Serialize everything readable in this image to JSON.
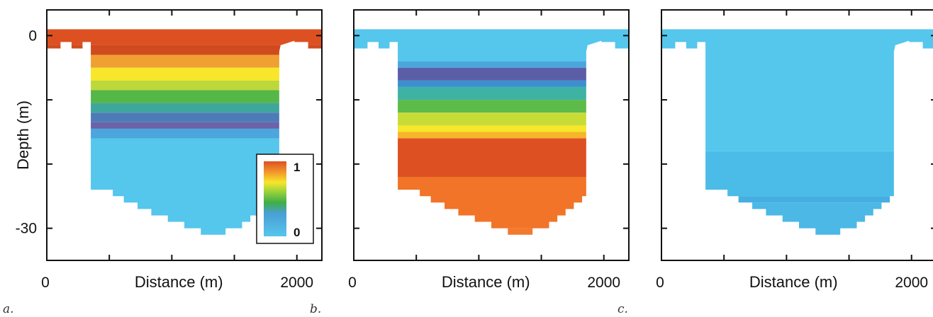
{
  "chart_data": [
    {
      "type": "heatmap",
      "panel_label": "a.",
      "xlabel": "Distance (m)",
      "ylabel": "Depth (m)",
      "x_ticks": [
        "0",
        "2000"
      ],
      "y_ticks": [
        "0",
        "-30"
      ],
      "xlim": [
        0,
        2200
      ],
      "ylim": [
        -35,
        4
      ],
      "profile": "low-top-high-bottom-inverted",
      "colorbar": {
        "min_label": "0",
        "max_label": "1",
        "placement": "bottom-right"
      }
    },
    {
      "type": "heatmap",
      "panel_label": "b.",
      "xlabel": "Distance (m)",
      "ylabel": "",
      "x_ticks": [
        "0",
        "2000"
      ],
      "y_ticks": [],
      "xlim": [
        0,
        2200
      ],
      "ylim": [
        -35,
        4
      ],
      "profile": "low-top-high-bottom"
    },
    {
      "type": "heatmap",
      "panel_label": "c.",
      "xlabel": "Distance (m)",
      "ylabel": "",
      "x_ticks": [
        "0",
        "2000"
      ],
      "y_ticks": [],
      "xlim": [
        0,
        2200
      ],
      "ylim": [
        -35,
        4
      ],
      "profile": "uniform-low"
    }
  ],
  "colors": {
    "rainbow_0": "#55c6ec",
    "rainbow_mid": "#3fae47",
    "rainbow_hi": "#f7e62a",
    "rainbow_1": "#dd5022",
    "orange_fill": "#f17429"
  }
}
